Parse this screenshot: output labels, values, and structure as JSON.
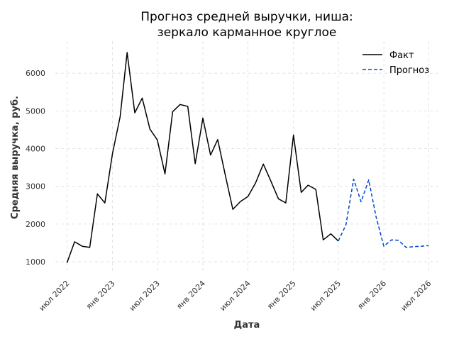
{
  "chart_data": {
    "type": "line",
    "title_lines": [
      "Прогноз средней выручки, ниша:",
      "зеркало карманное круглое"
    ],
    "xlabel": "Дата",
    "ylabel": "Средняя выручка, руб.",
    "x_range": [
      "2022-05-15",
      "2026-08-15"
    ],
    "ylim": [
      700,
      6850
    ],
    "y_ticks": [
      1000,
      2000,
      3000,
      4000,
      5000,
      6000
    ],
    "x_ticks": [
      {
        "date": "2022-07-01",
        "label": "июл 2022"
      },
      {
        "date": "2023-01-01",
        "label": "янв 2023"
      },
      {
        "date": "2023-07-01",
        "label": "июл 2023"
      },
      {
        "date": "2024-01-01",
        "label": "янв 2024"
      },
      {
        "date": "2024-07-01",
        "label": "июл 2024"
      },
      {
        "date": "2025-01-01",
        "label": "янв 2025"
      },
      {
        "date": "2025-07-01",
        "label": "июл 2025"
      },
      {
        "date": "2026-01-01",
        "label": "янв 2026"
      },
      {
        "date": "2026-07-01",
        "label": "июл 2026"
      }
    ],
    "grid": true,
    "legend_position": "top-right",
    "series": [
      {
        "name": "Факт",
        "color": "#000000",
        "dash": "solid",
        "points": [
          [
            "2022-07-01",
            970
          ],
          [
            "2022-08-01",
            1530
          ],
          [
            "2022-09-01",
            1410
          ],
          [
            "2022-10-01",
            1380
          ],
          [
            "2022-11-01",
            2800
          ],
          [
            "2022-12-01",
            2560
          ],
          [
            "2023-01-01",
            3870
          ],
          [
            "2023-02-01",
            4850
          ],
          [
            "2023-03-01",
            6550
          ],
          [
            "2023-04-01",
            4950
          ],
          [
            "2023-05-01",
            5340
          ],
          [
            "2023-06-01",
            4520
          ],
          [
            "2023-07-01",
            4230
          ],
          [
            "2023-08-01",
            3330
          ],
          [
            "2023-09-01",
            4980
          ],
          [
            "2023-10-01",
            5170
          ],
          [
            "2023-11-01",
            5120
          ],
          [
            "2023-12-01",
            3600
          ],
          [
            "2024-01-01",
            4810
          ],
          [
            "2024-02-01",
            3830
          ],
          [
            "2024-03-01",
            4240
          ],
          [
            "2024-04-01",
            3280
          ],
          [
            "2024-05-01",
            2390
          ],
          [
            "2024-06-01",
            2600
          ],
          [
            "2024-07-01",
            2730
          ],
          [
            "2024-08-01",
            3090
          ],
          [
            "2024-09-01",
            3590
          ],
          [
            "2024-10-01",
            3150
          ],
          [
            "2024-11-01",
            2670
          ],
          [
            "2024-12-01",
            2560
          ],
          [
            "2025-01-01",
            4360
          ],
          [
            "2025-02-01",
            2840
          ],
          [
            "2025-03-01",
            3030
          ],
          [
            "2025-04-01",
            2920
          ],
          [
            "2025-05-01",
            1580
          ],
          [
            "2025-06-01",
            1740
          ],
          [
            "2025-07-01",
            1550
          ]
        ]
      },
      {
        "name": "Прогноз",
        "color": "#0044cc",
        "dash": "dashed",
        "points": [
          [
            "2025-07-01",
            1550
          ],
          [
            "2025-08-01",
            1980
          ],
          [
            "2025-09-01",
            3190
          ],
          [
            "2025-10-01",
            2590
          ],
          [
            "2025-11-01",
            3170
          ],
          [
            "2025-12-01",
            2180
          ],
          [
            "2026-01-01",
            1410
          ],
          [
            "2026-02-01",
            1580
          ],
          [
            "2026-03-01",
            1570
          ],
          [
            "2026-04-01",
            1380
          ],
          [
            "2026-05-01",
            1400
          ],
          [
            "2026-06-01",
            1410
          ],
          [
            "2026-07-01",
            1430
          ]
        ]
      }
    ]
  }
}
